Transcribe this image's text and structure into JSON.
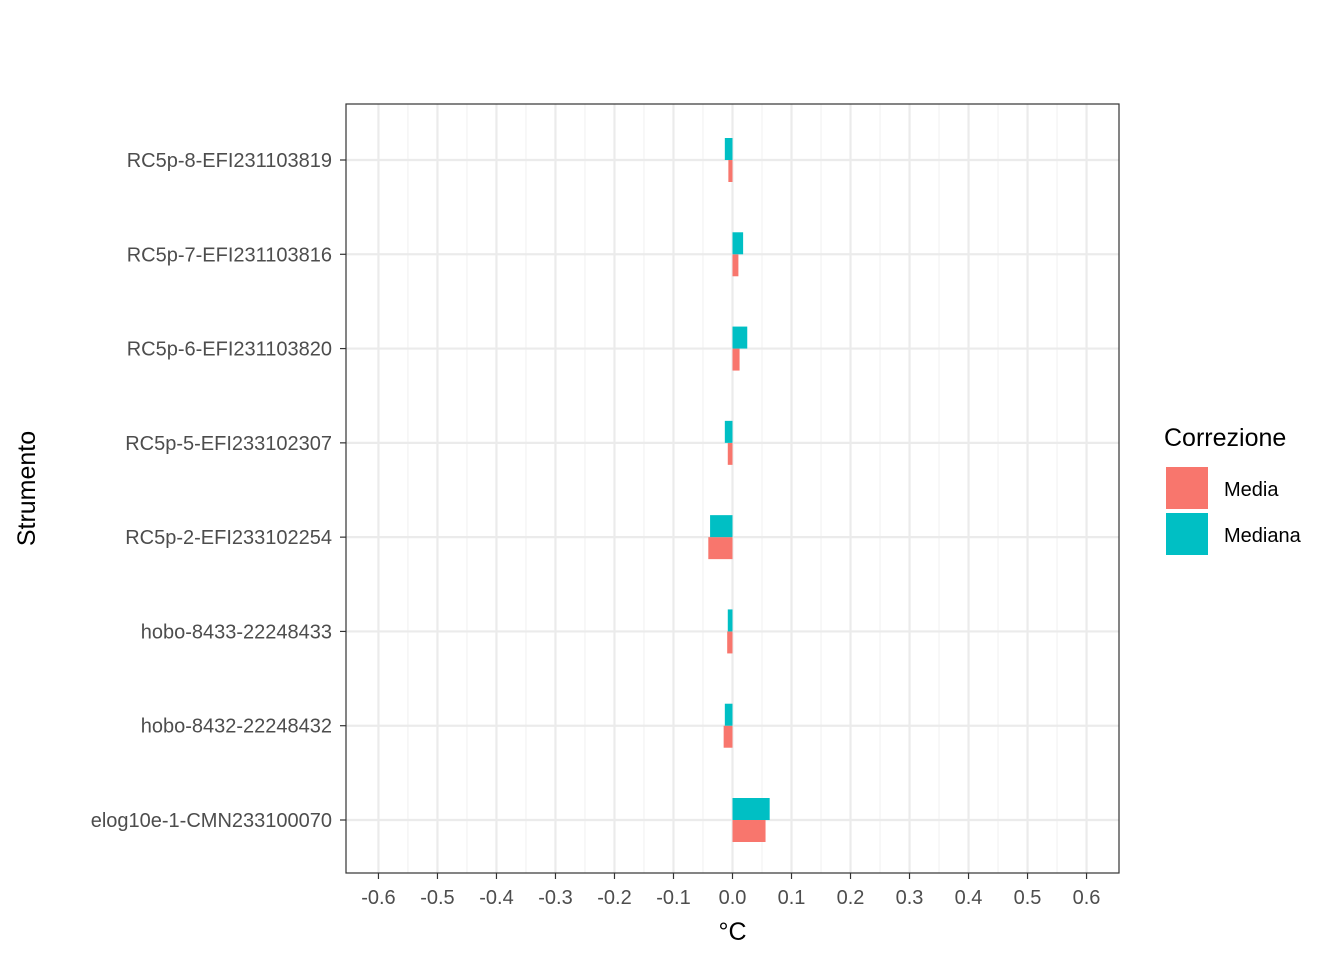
{
  "chart_data": {
    "type": "bar",
    "orientation": "horizontal",
    "xlabel": "°C",
    "ylabel": "Strumento",
    "xlim": [
      -0.655,
      0.655
    ],
    "x_ticks": [
      -0.6,
      -0.5,
      -0.4,
      -0.3,
      -0.2,
      -0.1,
      0.0,
      0.1,
      0.2,
      0.3,
      0.4,
      0.5,
      0.6
    ],
    "x_tick_labels": [
      "-0.6",
      "-0.5",
      "-0.4",
      "-0.3",
      "-0.2",
      "-0.1",
      "0.0",
      "0.1",
      "0.2",
      "0.3",
      "0.4",
      "0.5",
      "0.6"
    ],
    "categories": [
      "RC5p-8-EFI231103819",
      "RC5p-7-EFI231103816",
      "RC5p-6-EFI231103820",
      "RC5p-5-EFI233102307",
      "RC5p-2-EFI233102254",
      "hobo-8433-22248433",
      "hobo-8432-22248432",
      "elog10e-1-CMN233100070"
    ],
    "series": [
      {
        "name": "Media",
        "color": "#F8766D",
        "values": [
          -0.007,
          0.01,
          0.012,
          -0.008,
          -0.041,
          -0.009,
          -0.015,
          0.056
        ]
      },
      {
        "name": "Mediana",
        "color": "#00BFC4",
        "values": [
          -0.013,
          0.018,
          0.025,
          -0.013,
          -0.038,
          -0.008,
          -0.013,
          0.063
        ]
      }
    ],
    "legend": {
      "title": "Correzione",
      "position": "right"
    },
    "grid": true
  }
}
